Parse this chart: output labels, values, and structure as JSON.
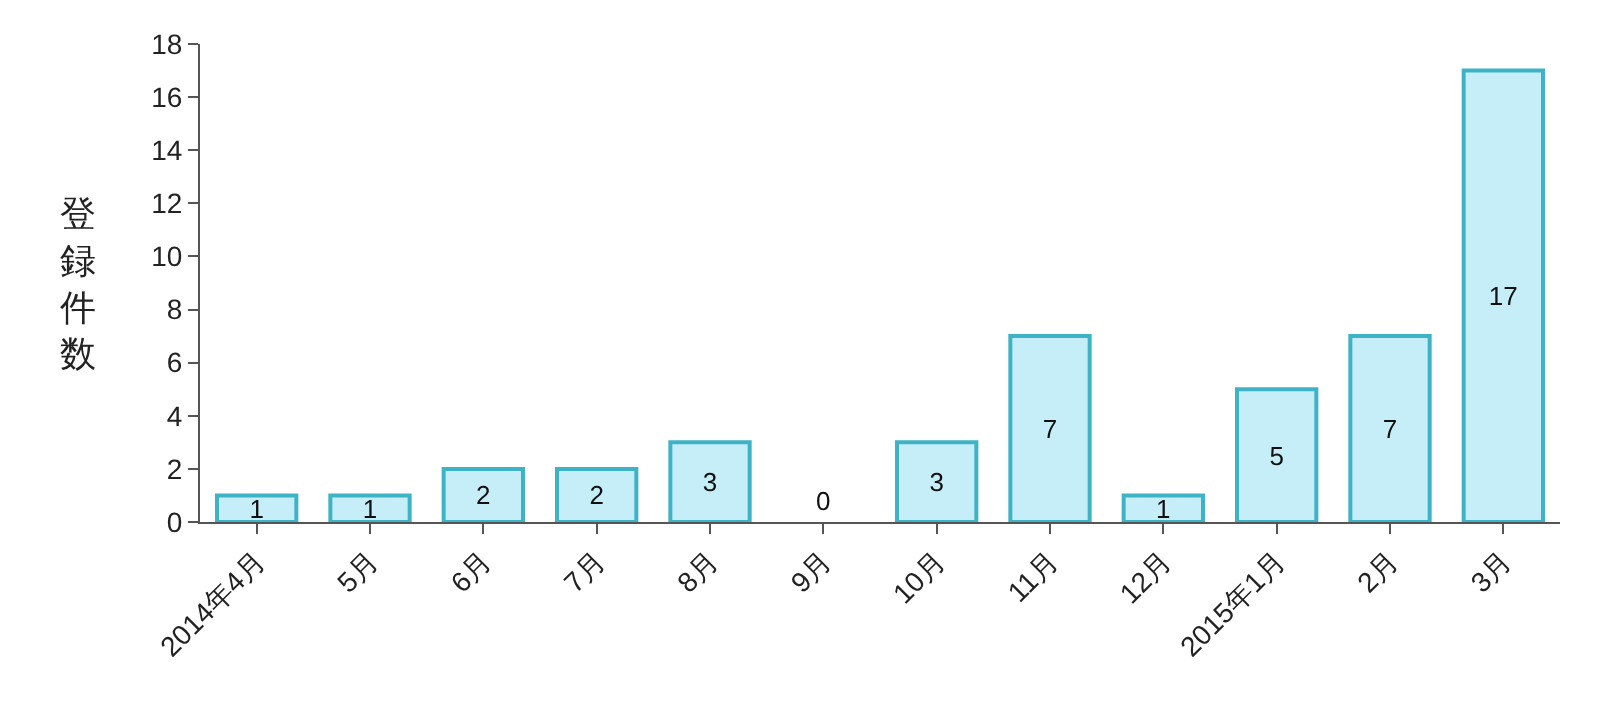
{
  "chart_data": {
    "type": "bar",
    "ylabel": "登録件数",
    "categories": [
      "2014年4月",
      "5月",
      "6月",
      "7月",
      "8月",
      "9月",
      "10月",
      "11月",
      "12月",
      "2015年1月",
      "2月",
      "3月"
    ],
    "values": [
      1,
      1,
      2,
      2,
      3,
      0,
      3,
      7,
      1,
      5,
      7,
      17
    ],
    "color": "#c6eef8",
    "ylim": [
      0,
      18
    ],
    "yticks": [
      0,
      2,
      4,
      6,
      8,
      10,
      12,
      14,
      16,
      18
    ],
    "grid": false,
    "data_labels": true
  }
}
